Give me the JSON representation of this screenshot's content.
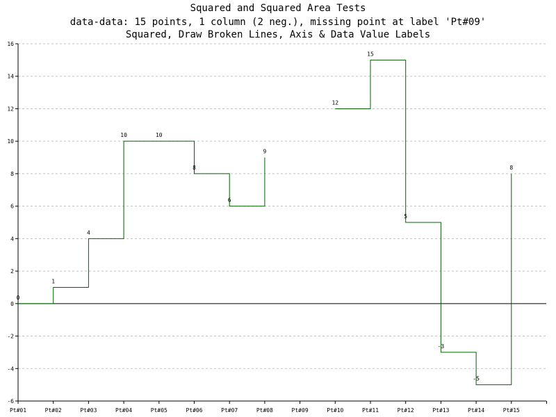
{
  "chart_data": {
    "type": "line",
    "style": "stepped",
    "title": "Squared and Squared Area Tests",
    "subtitle": "data-data: 15 points, 1 column (2 neg.), missing point at label 'Pt#09'",
    "subtitle2": "Squared, Draw Broken Lines, Axis & Data Value Labels",
    "xlabel": "",
    "ylabel": "",
    "categories": [
      "Pt#01",
      "Pt#02",
      "Pt#03",
      "Pt#04",
      "Pt#05",
      "Pt#06",
      "Pt#07",
      "Pt#08",
      "Pt#09",
      "Pt#10",
      "Pt#11",
      "Pt#12",
      "Pt#13",
      "Pt#14",
      "Pt#15"
    ],
    "series": [
      {
        "values": [
          0,
          1,
          4,
          10,
          10,
          8,
          6,
          9,
          null,
          12,
          15,
          5,
          -3,
          -5,
          8
        ],
        "color": "#006400"
      }
    ],
    "data_labels": [
      "0",
      "1",
      "4",
      "10",
      "10",
      "8",
      "6",
      "9",
      "",
      "12",
      "15",
      "5",
      "-3",
      "-5",
      "8"
    ],
    "ylim": [
      -6,
      16
    ],
    "yticks": [
      16,
      14,
      12,
      10,
      8,
      6,
      4,
      2,
      0,
      -2,
      -4,
      -6
    ],
    "ytick_labels": [
      "16",
      "14",
      "12",
      "10",
      "8",
      "6",
      "4",
      "2",
      "0",
      "-2",
      "-4",
      "-6"
    ],
    "grid": "horizontal dashed",
    "legend": "none",
    "colors": {
      "line": "#006400",
      "axis": "#000000",
      "grid": "#c0c0c0",
      "text": "#000000",
      "background": "#ffffff"
    }
  }
}
